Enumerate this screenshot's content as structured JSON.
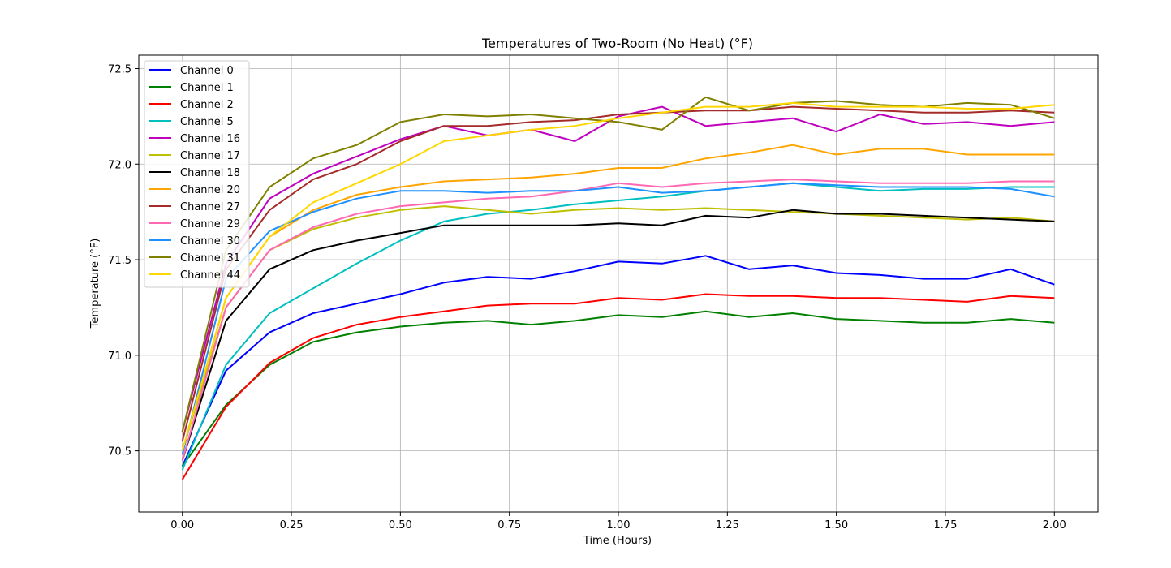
{
  "chart_data": {
    "type": "line",
    "title": "Temperatures of Two-Room (No Heat) (°F)",
    "xlabel": "Time (Hours)",
    "ylabel": "Temperature (°F)",
    "xlim": [
      -0.1,
      2.1
    ],
    "ylim": [
      70.18,
      72.57
    ],
    "xticks": [
      0.0,
      0.25,
      0.5,
      0.75,
      1.0,
      1.25,
      1.5,
      1.75,
      2.0
    ],
    "xtick_labels": [
      "0.00",
      "0.25",
      "0.50",
      "0.75",
      "1.00",
      "1.25",
      "1.50",
      "1.75",
      "2.00"
    ],
    "yticks": [
      70.5,
      71.0,
      71.5,
      72.0,
      72.5
    ],
    "ytick_labels": [
      "70.5",
      "71.0",
      "71.5",
      "72.0",
      "72.5"
    ],
    "grid": true,
    "legend_position": "upper-left",
    "series": [
      {
        "name": "Channel 0",
        "color": "#0000ff",
        "x": [
          0,
          0.1,
          0.2,
          0.3,
          0.4,
          0.5,
          0.6,
          0.7,
          0.8,
          0.9,
          1.0,
          1.1,
          1.2,
          1.3,
          1.4,
          1.5,
          1.6,
          1.7,
          1.8,
          1.9,
          2.0
        ],
        "y": [
          70.42,
          70.92,
          71.12,
          71.22,
          71.27,
          71.32,
          71.38,
          71.41,
          71.4,
          71.44,
          71.49,
          71.48,
          71.52,
          71.45,
          71.47,
          71.43,
          71.42,
          71.4,
          71.4,
          71.45,
          71.37
        ]
      },
      {
        "name": "Channel 1",
        "color": "#008000",
        "x": [
          0,
          0.1,
          0.2,
          0.3,
          0.4,
          0.5,
          0.6,
          0.7,
          0.8,
          0.9,
          1.0,
          1.1,
          1.2,
          1.3,
          1.4,
          1.5,
          1.6,
          1.7,
          1.8,
          1.9,
          2.0
        ],
        "y": [
          70.42,
          70.74,
          70.95,
          71.07,
          71.12,
          71.15,
          71.17,
          71.18,
          71.16,
          71.18,
          71.21,
          71.2,
          71.23,
          71.2,
          71.22,
          71.19,
          71.18,
          71.17,
          71.17,
          71.19,
          71.17
        ]
      },
      {
        "name": "Channel 2",
        "color": "#ff0000",
        "x": [
          0,
          0.1,
          0.2,
          0.3,
          0.4,
          0.5,
          0.6,
          0.7,
          0.8,
          0.9,
          1.0,
          1.1,
          1.2,
          1.3,
          1.4,
          1.5,
          1.6,
          1.7,
          1.8,
          1.9,
          2.0
        ],
        "y": [
          70.35,
          70.73,
          70.96,
          71.09,
          71.16,
          71.2,
          71.23,
          71.26,
          71.27,
          71.27,
          71.3,
          71.29,
          71.32,
          71.31,
          71.31,
          71.3,
          71.3,
          71.29,
          71.28,
          71.31,
          71.3
        ]
      },
      {
        "name": "Channel 5",
        "color": "#00bfbf",
        "x": [
          0,
          0.1,
          0.2,
          0.3,
          0.4,
          0.5,
          0.6,
          0.7,
          0.8,
          0.9,
          1.0,
          1.1,
          1.2,
          1.3,
          1.4,
          1.5,
          1.6,
          1.7,
          1.8,
          1.9,
          2.0
        ],
        "y": [
          70.4,
          70.95,
          71.22,
          71.35,
          71.48,
          71.6,
          71.7,
          71.74,
          71.76,
          71.79,
          71.81,
          71.83,
          71.86,
          71.88,
          71.9,
          71.88,
          71.86,
          71.87,
          71.87,
          71.88,
          71.88
        ]
      },
      {
        "name": "Channel 16",
        "color": "#bf00bf",
        "x": [
          0,
          0.1,
          0.2,
          0.3,
          0.4,
          0.5,
          0.6,
          0.7,
          0.8,
          0.9,
          1.0,
          1.1,
          1.2,
          1.3,
          1.4,
          1.5,
          1.6,
          1.7,
          1.8,
          1.9,
          2.0
        ],
        "y": [
          70.6,
          71.48,
          71.82,
          71.95,
          72.04,
          72.13,
          72.2,
          72.15,
          72.18,
          72.12,
          72.25,
          72.3,
          72.2,
          72.22,
          72.24,
          72.17,
          72.26,
          72.21,
          72.22,
          72.2,
          72.22
        ]
      },
      {
        "name": "Channel 17",
        "color": "#bfbf00",
        "x": [
          0,
          0.1,
          0.2,
          0.3,
          0.4,
          0.5,
          0.6,
          0.7,
          0.8,
          0.9,
          1.0,
          1.1,
          1.2,
          1.3,
          1.4,
          1.5,
          1.6,
          1.7,
          1.8,
          1.9,
          2.0
        ],
        "y": [
          70.5,
          71.25,
          71.55,
          71.66,
          71.72,
          71.76,
          71.78,
          71.76,
          71.74,
          71.76,
          71.77,
          71.76,
          71.77,
          71.76,
          71.75,
          71.74,
          71.73,
          71.72,
          71.71,
          71.72,
          71.7
        ]
      },
      {
        "name": "Channel 18",
        "color": "#000000",
        "x": [
          0,
          0.1,
          0.2,
          0.3,
          0.4,
          0.5,
          0.6,
          0.7,
          0.8,
          0.9,
          1.0,
          1.1,
          1.2,
          1.3,
          1.4,
          1.5,
          1.6,
          1.7,
          1.8,
          1.9,
          2.0
        ],
        "y": [
          70.45,
          71.18,
          71.45,
          71.55,
          71.6,
          71.64,
          71.68,
          71.68,
          71.68,
          71.68,
          71.69,
          71.68,
          71.73,
          71.72,
          71.76,
          71.74,
          71.74,
          71.73,
          71.72,
          71.71,
          71.7
        ]
      },
      {
        "name": "Channel 20",
        "color": "#ffa500",
        "x": [
          0,
          0.1,
          0.2,
          0.3,
          0.4,
          0.5,
          0.6,
          0.7,
          0.8,
          0.9,
          1.0,
          1.1,
          1.2,
          1.3,
          1.4,
          1.5,
          1.6,
          1.7,
          1.8,
          1.9,
          2.0
        ],
        "y": [
          70.5,
          71.3,
          71.62,
          71.76,
          71.84,
          71.88,
          71.91,
          71.92,
          71.93,
          71.95,
          71.98,
          71.98,
          72.03,
          72.06,
          72.1,
          72.05,
          72.08,
          72.08,
          72.05,
          72.05,
          72.05
        ]
      },
      {
        "name": "Channel 27",
        "color": "#a52a2a",
        "x": [
          0,
          0.1,
          0.2,
          0.3,
          0.4,
          0.5,
          0.6,
          0.7,
          0.8,
          0.9,
          1.0,
          1.1,
          1.2,
          1.3,
          1.4,
          1.5,
          1.6,
          1.7,
          1.8,
          1.9,
          2.0
        ],
        "y": [
          70.55,
          71.45,
          71.76,
          71.92,
          72.0,
          72.12,
          72.2,
          72.2,
          72.22,
          72.23,
          72.26,
          72.27,
          72.28,
          72.28,
          72.3,
          72.29,
          72.28,
          72.27,
          72.27,
          72.28,
          72.27
        ]
      },
      {
        "name": "Channel 29",
        "color": "#ff69b4",
        "x": [
          0,
          0.1,
          0.2,
          0.3,
          0.4,
          0.5,
          0.6,
          0.7,
          0.8,
          0.9,
          1.0,
          1.1,
          1.2,
          1.3,
          1.4,
          1.5,
          1.6,
          1.7,
          1.8,
          1.9,
          2.0
        ],
        "y": [
          70.45,
          71.25,
          71.55,
          71.67,
          71.74,
          71.78,
          71.8,
          71.82,
          71.83,
          71.86,
          71.9,
          71.88,
          71.9,
          71.91,
          71.92,
          71.91,
          71.9,
          71.9,
          71.9,
          71.91,
          71.91
        ]
      },
      {
        "name": "Channel 30",
        "color": "#1e90ff",
        "x": [
          0,
          0.1,
          0.2,
          0.3,
          0.4,
          0.5,
          0.6,
          0.7,
          0.8,
          0.9,
          1.0,
          1.1,
          1.2,
          1.3,
          1.4,
          1.5,
          1.6,
          1.7,
          1.8,
          1.9,
          2.0
        ],
        "y": [
          70.48,
          71.4,
          71.65,
          71.75,
          71.82,
          71.86,
          71.86,
          71.85,
          71.86,
          71.86,
          71.88,
          71.85,
          71.86,
          71.88,
          71.9,
          71.89,
          71.88,
          71.88,
          71.88,
          71.87,
          71.83
        ]
      },
      {
        "name": "Channel 31",
        "color": "#808000",
        "x": [
          0,
          0.1,
          0.2,
          0.3,
          0.4,
          0.5,
          0.6,
          0.7,
          0.8,
          0.9,
          1.0,
          1.1,
          1.2,
          1.3,
          1.4,
          1.5,
          1.6,
          1.7,
          1.8,
          1.9,
          2.0
        ],
        "y": [
          70.6,
          71.55,
          71.88,
          72.03,
          72.1,
          72.22,
          72.26,
          72.25,
          72.26,
          72.24,
          72.22,
          72.18,
          72.35,
          72.28,
          72.32,
          72.33,
          72.31,
          72.3,
          72.32,
          72.31,
          72.24
        ]
      },
      {
        "name": "Channel 44",
        "color": "#ffd700",
        "x": [
          0,
          0.1,
          0.2,
          0.3,
          0.4,
          0.5,
          0.6,
          0.7,
          0.8,
          0.9,
          1.0,
          1.1,
          1.2,
          1.3,
          1.4,
          1.5,
          1.6,
          1.7,
          1.8,
          1.9,
          2.0
        ],
        "y": [
          70.5,
          71.3,
          71.62,
          71.8,
          71.9,
          72.0,
          72.12,
          72.15,
          72.18,
          72.2,
          72.24,
          72.27,
          72.3,
          72.3,
          72.32,
          72.3,
          72.3,
          72.3,
          72.29,
          72.29,
          72.31
        ]
      }
    ]
  }
}
